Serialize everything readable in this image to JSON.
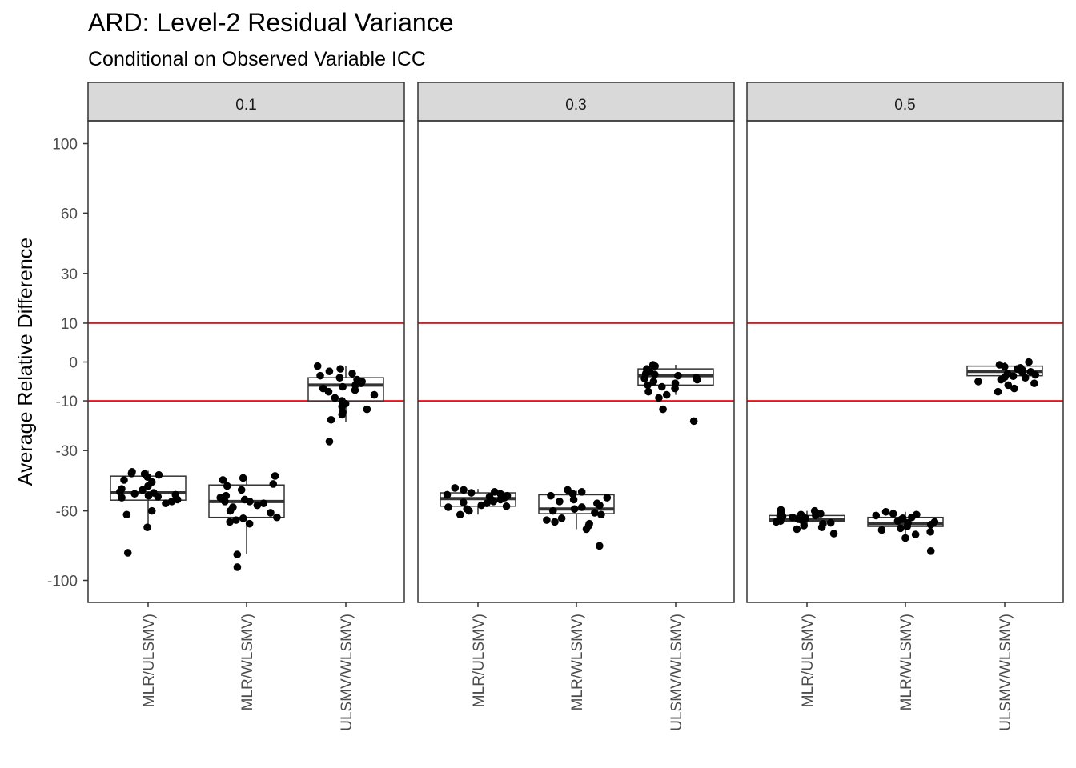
{
  "chart_data": {
    "type": "box",
    "title": "ARD: Level-2 Residual Variance",
    "subtitle": "Conditional on Observed Variable ICC",
    "xlabel": "",
    "ylabel": "Average Relative Difference",
    "ylim": [
      -110,
      110
    ],
    "y_scale": "signed power (compressed near 0)",
    "yticks": [
      100,
      60,
      30,
      10,
      0,
      -10,
      -30,
      -60,
      -100
    ],
    "categories": [
      "MLR/ULSMV)",
      "MLR/WLSMV)",
      "ULSMV/WLSMV)"
    ],
    "reference_lines": [
      10,
      -10
    ],
    "colors": {
      "reference_line": "#e8141c",
      "strip": "#d9d9d9",
      "points": "#000000",
      "box_border": "#333333"
    },
    "grid": false,
    "panels": [
      {
        "label": "0.1",
        "boxes": [
          {
            "category": "MLR/ULSMV)",
            "q1": -54.3,
            "median": -50.5,
            "q3": -42.1,
            "whisker_low": -68.0,
            "whisker_high": -39.5,
            "points": [
              -42.5,
              -45.0,
              -44.0,
              -40.0,
              -41.0,
              -52.0,
              -53.0,
              -55.0,
              -50.5,
              -49.0,
              -51.0,
              -56.0,
              -52.5,
              -48.5,
              -47.0,
              -40.8,
              -41.5,
              -62.0,
              -60.0,
              -69.0,
              -83.5,
              -50.0,
              -51.5,
              -54.0
            ]
          },
          {
            "category": "MLR/WLSMV)",
            "q1": -63.5,
            "median": -55.0,
            "q3": -46.5,
            "whisker_low": -84.0,
            "whisker_high": -42.5,
            "points": [
              -44.0,
              -43.0,
              -42.0,
              -47.0,
              -49.0,
              -55.0,
              -57.0,
              -58.0,
              -52.0,
              -63.5,
              -64.0,
              -66.0,
              -67.0,
              -65.0,
              -55.0,
              -56.0,
              -92.0,
              -84.5,
              -53.0,
              -46.0,
              -60.0,
              -61.0,
              -54.0
            ]
          },
          {
            "category": "ULSMV/WLSMV)",
            "q1": -10.0,
            "median": -5.0,
            "q3": -3.0,
            "whisker_low": -18.0,
            "whisker_high": -0.5,
            "points": [
              -1.5,
              -2.0,
              -3.0,
              -4.0,
              -5.0,
              -6.0,
              -7.0,
              -5.5,
              -2.5,
              -0.5,
              -1.0,
              -3.5,
              -6.5,
              -8.0,
              -9.0,
              -10.0,
              -11.0,
              -12.0,
              -13.0,
              -14.0,
              -15.0,
              -17.0,
              -26.0,
              -4.5
            ]
          }
        ]
      },
      {
        "label": "0.3",
        "boxes": [
          {
            "category": "MLR/ULSMV)",
            "q1": -57.5,
            "median": -53.5,
            "q3": -50.5,
            "whisker_low": -62.0,
            "whisker_high": -48.5,
            "points": [
              -48.0,
              -49.0,
              -50.0,
              -51.0,
              -52.0,
              -53.0,
              -54.0,
              -55.0,
              -56.0,
              -57.0,
              -58.0,
              -59.0,
              -60.0,
              -62.0,
              -50.5,
              -52.5,
              -54.5,
              -55.5,
              -57.5,
              -51.5
            ]
          },
          {
            "category": "MLR/WLSMV)",
            "q1": -61.5,
            "median": -59.0,
            "q3": -51.5,
            "whisker_low": -70.0,
            "whisker_high": -49.5,
            "points": [
              -49.0,
              -50.0,
              -51.0,
              -52.0,
              -53.0,
              -54.0,
              -57.0,
              -58.0,
              -59.0,
              -60.0,
              -61.0,
              -62.0,
              -64.0,
              -65.0,
              -66.0,
              -67.0,
              -68.0,
              -70.0,
              -79.5,
              -55.0,
              -56.0
            ]
          },
          {
            "category": "ULSMV/WLSMV)",
            "q1": -5.0,
            "median": -2.5,
            "q3": -1.0,
            "whisker_low": -8.0,
            "whisker_high": -0.3,
            "points": [
              -0.5,
              -1.0,
              -1.5,
              -2.0,
              -2.5,
              -3.0,
              -3.5,
              -4.0,
              -4.5,
              -5.0,
              -5.5,
              -6.0,
              -7.0,
              -8.0,
              -9.0,
              -13.0,
              -17.5,
              -0.3,
              -2.2,
              -3.2
            ]
          }
        ]
      },
      {
        "label": "0.5",
        "boxes": [
          {
            "category": "MLR/ULSMV)",
            "q1": -65.5,
            "median": -64.5,
            "q3": -62.5,
            "whisker_low": -69.0,
            "whisker_high": -60.0,
            "points": [
              -60.0,
              -61.0,
              -62.0,
              -63.0,
              -64.0,
              -65.0,
              -66.0,
              -67.0,
              -68.0,
              -69.0,
              -70.0,
              -72.5,
              -61.5,
              -62.5,
              -63.5,
              -64.5,
              -65.5,
              -66.5,
              -59.5,
              -63.0
            ]
          },
          {
            "category": "MLR/WLSMV)",
            "q1": -68.5,
            "median": -67.0,
            "q3": -63.5,
            "whisker_low": -75.0,
            "whisker_high": -60.5,
            "points": [
              -60.5,
              -61.5,
              -62.5,
              -63.5,
              -64.5,
              -65.5,
              -66.5,
              -67.5,
              -68.5,
              -69.5,
              -70.5,
              -71.5,
              -73.0,
              -75.0,
              -82.5,
              -62.0,
              -64.0,
              -66.0
            ]
          },
          {
            "category": "ULSMV/WLSMV)",
            "q1": -2.5,
            "median": -1.5,
            "q3": -0.5,
            "whisker_low": -4.0,
            "whisker_high": 0.0,
            "points": [
              0.0,
              -0.3,
              -0.6,
              -1.0,
              -1.3,
              -1.6,
              -2.0,
              -2.3,
              -2.6,
              -3.0,
              -3.5,
              -4.0,
              -4.5,
              -5.0,
              -6.0,
              -7.0,
              -0.8,
              -1.8,
              -2.8
            ]
          }
        ]
      }
    ]
  }
}
